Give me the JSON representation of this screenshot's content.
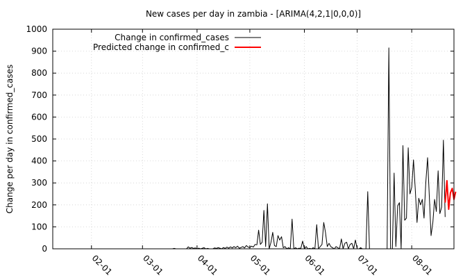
{
  "chart_data": {
    "type": "line",
    "title": "New cases per day in zambia -  [ARIMA(4,2,1|0,0,0)]",
    "xlabel": "",
    "ylabel": "Change per day in confirmed_cases",
    "ylim": [
      0,
      1000
    ],
    "xlim": [
      "2020-01-10",
      "2020-08-25"
    ],
    "y_ticks": [
      "0",
      "100",
      "200",
      "300",
      "400",
      "500",
      "600",
      "700",
      "800",
      "900",
      "1000"
    ],
    "x_ticks": [
      {
        "date": "2020-02-01",
        "label": "02-01"
      },
      {
        "date": "2020-03-01",
        "label": "03-01"
      },
      {
        "date": "2020-04-01",
        "label": "04-01"
      },
      {
        "date": "2020-05-01",
        "label": "05-01"
      },
      {
        "date": "2020-06-01",
        "label": "06-01"
      },
      {
        "date": "2020-07-01",
        "label": "07-01"
      },
      {
        "date": "2020-08-01",
        "label": "08-01"
      }
    ],
    "grid": true,
    "legend_position": "top-left",
    "series": [
      {
        "name": "Change in confirmed_cases",
        "color": "#000000",
        "points": [
          [
            "2020-01-10",
            0
          ],
          [
            "2020-03-18",
            0
          ],
          [
            "2020-03-19",
            2
          ],
          [
            "2020-03-20",
            0
          ],
          [
            "2020-03-26",
            0
          ],
          [
            "2020-03-27",
            9
          ],
          [
            "2020-03-28",
            3
          ],
          [
            "2020-03-29",
            6
          ],
          [
            "2020-03-30",
            2
          ],
          [
            "2020-03-31",
            4
          ],
          [
            "2020-04-01",
            0
          ],
          [
            "2020-04-02",
            3
          ],
          [
            "2020-04-03",
            0
          ],
          [
            "2020-04-05",
            5
          ],
          [
            "2020-04-06",
            0
          ],
          [
            "2020-04-07",
            2
          ],
          [
            "2020-04-08",
            0
          ],
          [
            "2020-04-10",
            0
          ],
          [
            "2020-04-11",
            4
          ],
          [
            "2020-04-12",
            2
          ],
          [
            "2020-04-13",
            5
          ],
          [
            "2020-04-14",
            3
          ],
          [
            "2020-04-15",
            0
          ],
          [
            "2020-04-16",
            6
          ],
          [
            "2020-04-17",
            2
          ],
          [
            "2020-04-18",
            8
          ],
          [
            "2020-04-19",
            3
          ],
          [
            "2020-04-20",
            9
          ],
          [
            "2020-04-21",
            4
          ],
          [
            "2020-04-22",
            10
          ],
          [
            "2020-04-23",
            5
          ],
          [
            "2020-04-24",
            12
          ],
          [
            "2020-04-25",
            3
          ],
          [
            "2020-04-26",
            6
          ],
          [
            "2020-04-27",
            10
          ],
          [
            "2020-04-28",
            4
          ],
          [
            "2020-04-29",
            15
          ],
          [
            "2020-04-30",
            8
          ],
          [
            "2020-05-01",
            6
          ],
          [
            "2020-05-02",
            12
          ],
          [
            "2020-05-03",
            8
          ],
          [
            "2020-05-04",
            20
          ],
          [
            "2020-05-05",
            18
          ],
          [
            "2020-05-06",
            85
          ],
          [
            "2020-05-07",
            20
          ],
          [
            "2020-05-08",
            30
          ],
          [
            "2020-05-09",
            175
          ],
          [
            "2020-05-10",
            10
          ],
          [
            "2020-05-11",
            205
          ],
          [
            "2020-05-12",
            0
          ],
          [
            "2020-05-13",
            30
          ],
          [
            "2020-05-14",
            75
          ],
          [
            "2020-05-15",
            15
          ],
          [
            "2020-05-16",
            10
          ],
          [
            "2020-05-17",
            60
          ],
          [
            "2020-05-18",
            40
          ],
          [
            "2020-05-19",
            55
          ],
          [
            "2020-05-20",
            5
          ],
          [
            "2020-05-21",
            10
          ],
          [
            "2020-05-22",
            0
          ],
          [
            "2020-05-23",
            5
          ],
          [
            "2020-05-24",
            0
          ],
          [
            "2020-05-25",
            135
          ],
          [
            "2020-05-26",
            0
          ],
          [
            "2020-05-27",
            5
          ],
          [
            "2020-05-28",
            0
          ],
          [
            "2020-05-29",
            3
          ],
          [
            "2020-05-30",
            2
          ],
          [
            "2020-05-31",
            35
          ],
          [
            "2020-06-01",
            0
          ],
          [
            "2020-06-02",
            10
          ],
          [
            "2020-06-03",
            0
          ],
          [
            "2020-06-04",
            2
          ],
          [
            "2020-06-05",
            0
          ],
          [
            "2020-06-06",
            5
          ],
          [
            "2020-06-07",
            0
          ],
          [
            "2020-06-08",
            110
          ],
          [
            "2020-06-09",
            0
          ],
          [
            "2020-06-10",
            10
          ],
          [
            "2020-06-11",
            20
          ],
          [
            "2020-06-12",
            120
          ],
          [
            "2020-06-13",
            75
          ],
          [
            "2020-06-14",
            10
          ],
          [
            "2020-06-15",
            25
          ],
          [
            "2020-06-16",
            10
          ],
          [
            "2020-06-17",
            5
          ],
          [
            "2020-06-18",
            0
          ],
          [
            "2020-06-19",
            10
          ],
          [
            "2020-06-20",
            5
          ],
          [
            "2020-06-21",
            0
          ],
          [
            "2020-06-22",
            45
          ],
          [
            "2020-06-23",
            0
          ],
          [
            "2020-06-24",
            25
          ],
          [
            "2020-06-25",
            30
          ],
          [
            "2020-06-26",
            0
          ],
          [
            "2020-06-27",
            20
          ],
          [
            "2020-06-28",
            25
          ],
          [
            "2020-06-29",
            0
          ],
          [
            "2020-06-30",
            40
          ],
          [
            "2020-07-01",
            0
          ],
          [
            "2020-07-02",
            0
          ],
          [
            "2020-07-03",
            5
          ],
          [
            "2020-07-04",
            0
          ],
          [
            "2020-07-05",
            0
          ],
          [
            "2020-07-06",
            0
          ],
          [
            "2020-07-07",
            260
          ],
          [
            "2020-07-08",
            0
          ],
          [
            "2020-07-09",
            0
          ],
          [
            "2020-07-10",
            0
          ],
          [
            "2020-07-11",
            0
          ],
          [
            "2020-07-12",
            0
          ],
          [
            "2020-07-13",
            0
          ],
          [
            "2020-07-14",
            0
          ],
          [
            "2020-07-15",
            0
          ],
          [
            "2020-07-16",
            0
          ],
          [
            "2020-07-17",
            0
          ],
          [
            "2020-07-18",
            0
          ],
          [
            "2020-07-19",
            915
          ],
          [
            "2020-07-20",
            0
          ],
          [
            "2020-07-21",
            0
          ],
          [
            "2020-07-22",
            345
          ],
          [
            "2020-07-23",
            10
          ],
          [
            "2020-07-24",
            195
          ],
          [
            "2020-07-25",
            210
          ],
          [
            "2020-07-26",
            0
          ],
          [
            "2020-07-27",
            470
          ],
          [
            "2020-07-28",
            130
          ],
          [
            "2020-07-29",
            140
          ],
          [
            "2020-07-30",
            460
          ],
          [
            "2020-07-31",
            250
          ],
          [
            "2020-08-01",
            280
          ],
          [
            "2020-08-02",
            405
          ],
          [
            "2020-08-03",
            275
          ],
          [
            "2020-08-04",
            120
          ],
          [
            "2020-08-05",
            230
          ],
          [
            "2020-08-06",
            200
          ],
          [
            "2020-08-07",
            225
          ],
          [
            "2020-08-08",
            140
          ],
          [
            "2020-08-09",
            300
          ],
          [
            "2020-08-10",
            415
          ],
          [
            "2020-08-11",
            240
          ],
          [
            "2020-08-12",
            60
          ],
          [
            "2020-08-13",
            120
          ],
          [
            "2020-08-14",
            225
          ],
          [
            "2020-08-15",
            170
          ],
          [
            "2020-08-16",
            355
          ],
          [
            "2020-08-17",
            160
          ],
          [
            "2020-08-18",
            190
          ],
          [
            "2020-08-19",
            495
          ],
          [
            "2020-08-20",
            145
          ]
        ]
      },
      {
        "name": "Predicted change in confirmed_c",
        "color": "#ff0000",
        "points": [
          [
            "2020-08-20",
            210
          ],
          [
            "2020-08-21",
            310
          ],
          [
            "2020-08-22",
            180
          ],
          [
            "2020-08-23",
            255
          ],
          [
            "2020-08-24",
            275
          ],
          [
            "2020-08-25",
            225
          ],
          [
            "2020-08-26",
            260
          ]
        ]
      }
    ]
  }
}
